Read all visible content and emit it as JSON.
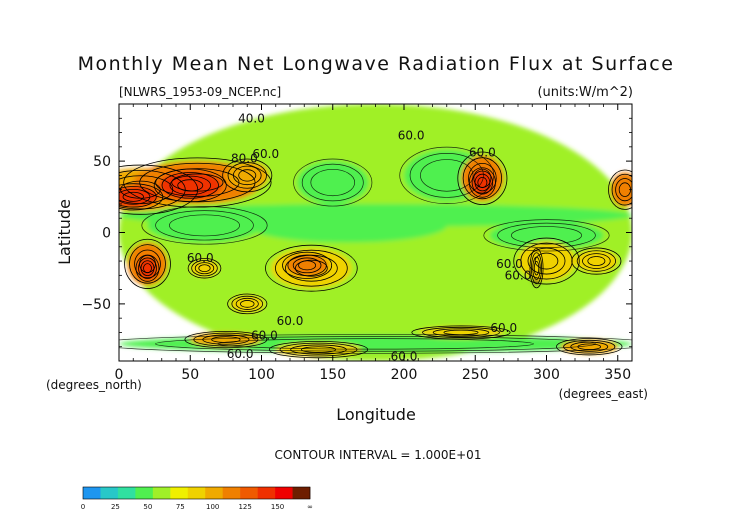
{
  "chart_data": {
    "type": "heatmap",
    "title": "Monthly Mean Net Longwave Radiation Flux at Surface",
    "file_label": "[NLWRS_1953-09_NCEP.nc]",
    "units_label": "(units:W/m^2)",
    "xlabel": "Longitude",
    "ylabel": "Latitude",
    "x_unit_label": "(degrees_east)",
    "y_unit_label": "(degrees_north)",
    "xlim": [
      0,
      360
    ],
    "ylim": [
      -90,
      90
    ],
    "x_ticks": [
      0,
      50,
      100,
      150,
      200,
      250,
      300,
      350
    ],
    "x_tick_labels": [
      "0",
      "50",
      "100",
      "150",
      "200",
      "250",
      "300",
      "350"
    ],
    "y_ticks": [
      50,
      0,
      -50
    ],
    "y_tick_labels": [
      "50",
      "0",
      "−50"
    ],
    "contour_interval_label": "CONTOUR INTERVAL = 1.000E+01",
    "contour_labels": [
      {
        "text": "40.0",
        "lon": 93,
        "lat": 80
      },
      {
        "text": "60.0",
        "lon": 205,
        "lat": 68
      },
      {
        "text": "60.0",
        "lon": 255,
        "lat": 56
      },
      {
        "text": "80.0",
        "lon": 88,
        "lat": 52
      },
      {
        "text": "60.0",
        "lon": 103,
        "lat": 55
      },
      {
        "text": "60.0",
        "lon": 57,
        "lat": -18
      },
      {
        "text": "60.0",
        "lon": 274,
        "lat": -22
      },
      {
        "text": "60.0",
        "lon": 280,
        "lat": -30
      },
      {
        "text": "60.0",
        "lon": 120,
        "lat": -62
      },
      {
        "text": "60.0",
        "lon": 270,
        "lat": -67
      },
      {
        "text": "60.0",
        "lon": 102,
        "lat": -72
      },
      {
        "text": "60.0",
        "lon": 85,
        "lat": -85
      },
      {
        "text": "60.0",
        "lon": 200,
        "lat": -87
      }
    ],
    "regions": [
      {
        "lon": 180,
        "lat": 0,
        "rx": 180,
        "ry": 90,
        "value": 55
      },
      {
        "lon": 180,
        "lat": 12,
        "rx": 180,
        "ry": 8,
        "value": 45
      },
      {
        "lon": 160,
        "lat": 5,
        "rx": 70,
        "ry": 12,
        "value": 42
      },
      {
        "lon": 300,
        "lat": -2,
        "rx": 40,
        "ry": 10,
        "value": 40
      },
      {
        "lon": 60,
        "lat": 5,
        "rx": 40,
        "ry": 12,
        "value": 45
      },
      {
        "lon": 230,
        "lat": 40,
        "rx": 30,
        "ry": 18,
        "value": 42
      },
      {
        "lon": 150,
        "lat": 35,
        "rx": 25,
        "ry": 15,
        "value": 45
      },
      {
        "lon": 15,
        "lat": 30,
        "rx": 35,
        "ry": 15,
        "value": 95
      },
      {
        "lon": 55,
        "lat": 35,
        "rx": 45,
        "ry": 15,
        "value": 110
      },
      {
        "lon": 50,
        "lat": 33,
        "rx": 22,
        "ry": 10,
        "value": 135
      },
      {
        "lon": 10,
        "lat": 25,
        "rx": 18,
        "ry": 8,
        "value": 130
      },
      {
        "lon": 90,
        "lat": 40,
        "rx": 15,
        "ry": 10,
        "value": 90
      },
      {
        "lon": 255,
        "lat": 38,
        "rx": 15,
        "ry": 16,
        "value": 100
      },
      {
        "lon": 255,
        "lat": 35,
        "rx": 8,
        "ry": 9,
        "value": 125
      },
      {
        "lon": 355,
        "lat": 30,
        "rx": 10,
        "ry": 12,
        "value": 110
      },
      {
        "lon": 20,
        "lat": -22,
        "rx": 14,
        "ry": 15,
        "value": 100
      },
      {
        "lon": 20,
        "lat": -25,
        "rx": 7,
        "ry": 8,
        "value": 125
      },
      {
        "lon": 135,
        "lat": -25,
        "rx": 28,
        "ry": 14,
        "value": 85
      },
      {
        "lon": 132,
        "lat": -23,
        "rx": 15,
        "ry": 8,
        "value": 110
      },
      {
        "lon": 293,
        "lat": -25,
        "rx": 4,
        "ry": 12,
        "value": 160
      },
      {
        "lon": 300,
        "lat": -20,
        "rx": 20,
        "ry": 14,
        "value": 80
      },
      {
        "lon": 60,
        "lat": -25,
        "rx": 10,
        "ry": 6,
        "value": 80
      },
      {
        "lon": 335,
        "lat": -20,
        "rx": 15,
        "ry": 8,
        "value": 78
      },
      {
        "lon": 90,
        "lat": -50,
        "rx": 12,
        "ry": 6,
        "value": 80
      },
      {
        "lon": 180,
        "lat": -78,
        "rx": 180,
        "ry": 6,
        "value": 45
      },
      {
        "lon": 75,
        "lat": -75,
        "rx": 25,
        "ry": 5,
        "value": 90
      },
      {
        "lon": 140,
        "lat": -82,
        "rx": 30,
        "ry": 5,
        "value": 80
      },
      {
        "lon": 330,
        "lat": -80,
        "rx": 20,
        "ry": 5,
        "value": 95
      },
      {
        "lon": 240,
        "lat": -70,
        "rx": 30,
        "ry": 4,
        "value": 80
      }
    ],
    "color_levels": [
      0,
      25,
      50,
      75,
      100,
      125,
      150
    ],
    "colorbar_labels": [
      "0",
      "25",
      "50",
      "75",
      "100",
      "125",
      "150",
      "∞"
    ],
    "colors": [
      "#1e96f0",
      "#28c8c8",
      "#30e0a0",
      "#50f050",
      "#a0f028",
      "#f0f000",
      "#f0d200",
      "#f0aa00",
      "#f08000",
      "#f05a00",
      "#f03000",
      "#f00000",
      "#6e1e00"
    ]
  }
}
